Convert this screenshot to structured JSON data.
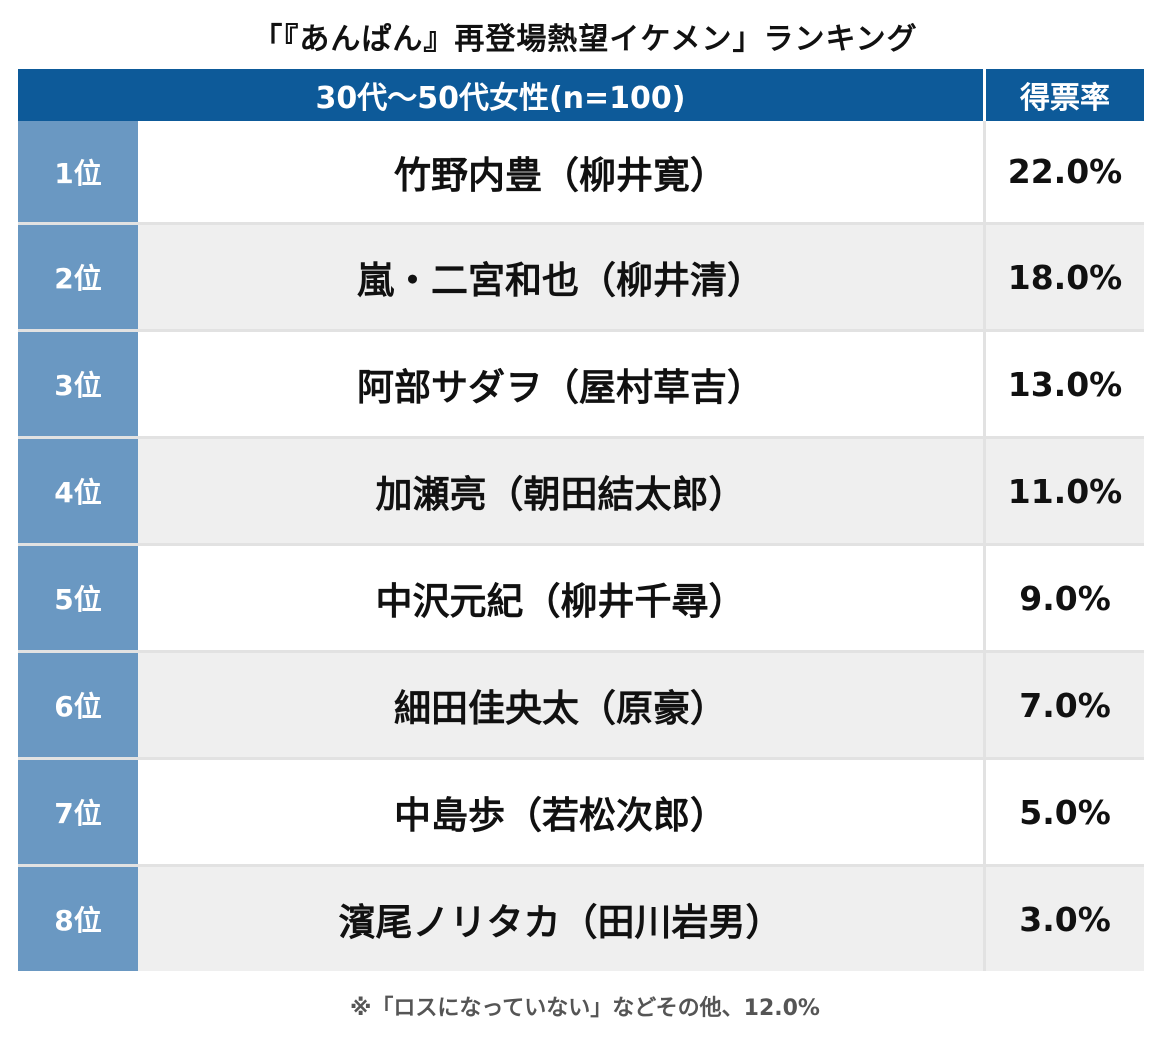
{
  "title": "「『あんぱん』再登場熱望イケメン」ランキング",
  "header": {
    "segment": "30代〜50代女性(n=100)",
    "rate_label": "得票率"
  },
  "colors": {
    "header_bg": "#0d5a99",
    "rank_bg": "#6a98c2",
    "row_alt_bg": "#efefef"
  },
  "chart_data": {
    "type": "table",
    "title": "「『あんぱん』再登場熱望イケメン」ランキング",
    "columns": [
      "30代〜50代女性(n=100)",
      "得票率"
    ],
    "rows": [
      {
        "rank": "1位",
        "name": "竹野内豊（柳井寛）",
        "rate": "22.0%",
        "value": 22.0
      },
      {
        "rank": "2位",
        "name": "嵐・二宮和也（柳井清）",
        "rate": "18.0%",
        "value": 18.0
      },
      {
        "rank": "3位",
        "name": "阿部サダヲ（屋村草吉）",
        "rate": "13.0%",
        "value": 13.0
      },
      {
        "rank": "4位",
        "name": "加瀬亮（朝田結太郎）",
        "rate": "11.0%",
        "value": 11.0
      },
      {
        "rank": "5位",
        "name": "中沢元紀（柳井千尋）",
        "rate": "9.0%",
        "value": 9.0
      },
      {
        "rank": "6位",
        "name": "細田佳央太（原豪）",
        "rate": "7.0%",
        "value": 7.0
      },
      {
        "rank": "7位",
        "name": "中島歩（若松次郎）",
        "rate": "5.0%",
        "value": 5.0
      },
      {
        "rank": "8位",
        "name": "濱尾ノリタカ（田川岩男）",
        "rate": "3.0%",
        "value": 3.0
      }
    ],
    "note": "※「ロスになっていない」などその他、12.0%"
  }
}
